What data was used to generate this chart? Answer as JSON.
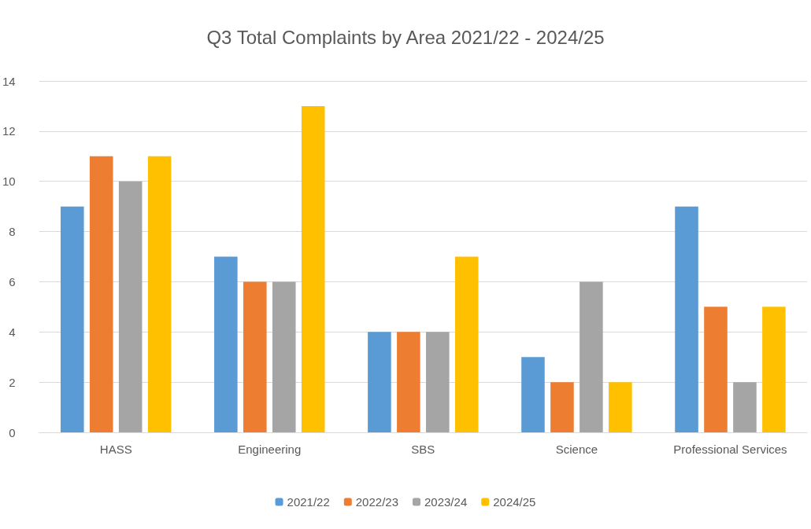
{
  "chart_data": {
    "type": "bar",
    "title": "Q3 Total Complaints by Area 2021/22 - 2024/25",
    "categories": [
      "HASS",
      "Engineering",
      "SBS",
      "Science",
      "Professional Services"
    ],
    "series": [
      {
        "name": "2021/22",
        "color": "#5b9bd5",
        "values": [
          9,
          7,
          4,
          3,
          9
        ]
      },
      {
        "name": "2022/23",
        "color": "#ed7d31",
        "values": [
          11,
          6,
          4,
          2,
          5
        ]
      },
      {
        "name": "2023/24",
        "color": "#a5a5a5",
        "values": [
          10,
          6,
          4,
          6,
          2
        ]
      },
      {
        "name": "2024/25",
        "color": "#ffc000",
        "values": [
          11,
          13,
          7,
          2,
          5
        ]
      }
    ],
    "ylim": [
      0,
      14
    ],
    "yticks": [
      0,
      2,
      4,
      6,
      8,
      10,
      12,
      14
    ],
    "grid": "y",
    "legend": "bottom"
  }
}
